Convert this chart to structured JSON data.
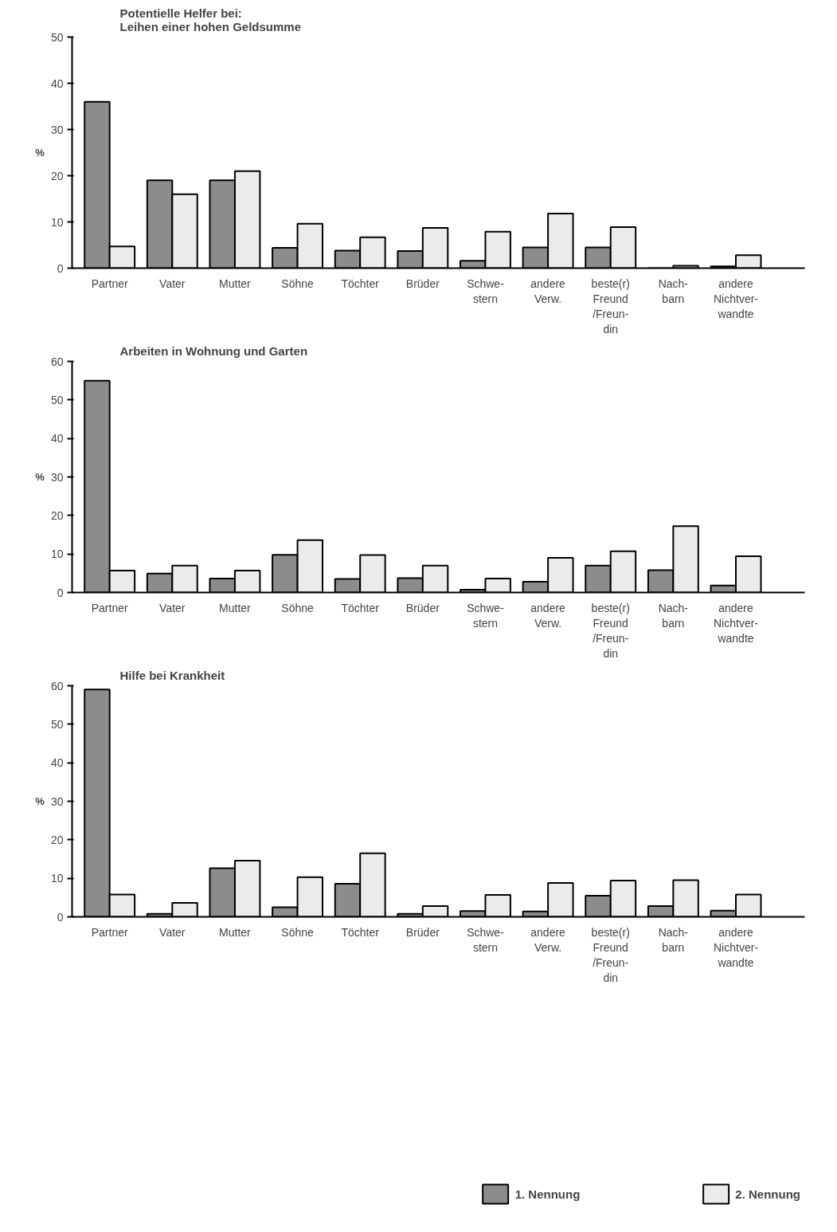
{
  "chart_data": [
    {
      "type": "bar",
      "title": "Potentielle Helfer bei:\nLeihen einer hohen Geldsumme",
      "ylabel": "%",
      "categories": [
        "Partner",
        "Vater",
        "Mutter",
        "Söhne",
        "Töchter",
        "Brüder",
        "Schwe-\nstern",
        "andere\nVerw.",
        "beste(r)\nFreund\n/Freun-\ndin",
        "Nach-\nbarn",
        "andere\nNichtver-\nwandte"
      ],
      "series": [
        {
          "color": "#8c8c8c",
          "values": [
            36,
            19,
            19,
            4.4,
            3.8,
            3.7,
            1.6,
            4.5,
            4.5,
            0,
            0.4
          ]
        },
        {
          "color": "#ebebeb",
          "values": [
            4.7,
            16,
            21,
            9.6,
            6.7,
            8.7,
            7.9,
            11.8,
            8.9,
            0.5,
            2.8
          ]
        }
      ],
      "ylim": [
        0,
        50
      ],
      "yticks": [
        0,
        10,
        20,
        30,
        40,
        50
      ],
      "grid": false
    },
    {
      "type": "bar",
      "title": "Arbeiten in Wohnung und Garten",
      "ylabel": "%",
      "categories": [
        "Partner",
        "Vater",
        "Mutter",
        "Söhne",
        "Töchter",
        "Brüder",
        "Schwe-\nstern",
        "andere\nVerw.",
        "beste(r)\nFreund\n/Freun-\ndin",
        "Nach-\nbarn",
        "andere\nNichtver-\nwandte"
      ],
      "series": [
        {
          "color": "#8c8c8c",
          "values": [
            55,
            4.9,
            3.6,
            9.8,
            3.5,
            3.7,
            0.7,
            2.8,
            7,
            5.8,
            1.8
          ]
        },
        {
          "color": "#ebebeb",
          "values": [
            5.7,
            7,
            5.7,
            13.6,
            9.7,
            7,
            3.6,
            9,
            10.7,
            17.2,
            9.4
          ]
        }
      ],
      "ylim": [
        0,
        60
      ],
      "yticks": [
        0,
        10,
        20,
        30,
        40,
        50,
        60
      ],
      "grid": false
    },
    {
      "type": "bar",
      "title": "Hilfe bei Krankheit",
      "ylabel": "%",
      "categories": [
        "Partner",
        "Vater",
        "Mutter",
        "Söhne",
        "Töchter",
        "Brüder",
        "Schwe-\nstern",
        "andere\nVerw.",
        "beste(r)\nFreund\n/Freun-\ndin",
        "Nach-\nbarn",
        "andere\nNichtver-\nwandte"
      ],
      "series": [
        {
          "name": "1. Nennung",
          "color": "#8c8c8c",
          "values": [
            59,
            0.8,
            12.6,
            2.5,
            8.6,
            0.8,
            1.5,
            1.4,
            5.5,
            2.8,
            1.6
          ]
        },
        {
          "name": "2. Nennung",
          "color": "#ebebeb",
          "values": [
            5.8,
            3.6,
            14.6,
            10.3,
            16.5,
            2.8,
            5.7,
            8.8,
            9.4,
            9.5,
            5.8
          ]
        }
      ],
      "ylim": [
        0,
        60
      ],
      "yticks": [
        0,
        10,
        20,
        30,
        40,
        50,
        60
      ],
      "grid": false,
      "legend": "bottom"
    }
  ]
}
